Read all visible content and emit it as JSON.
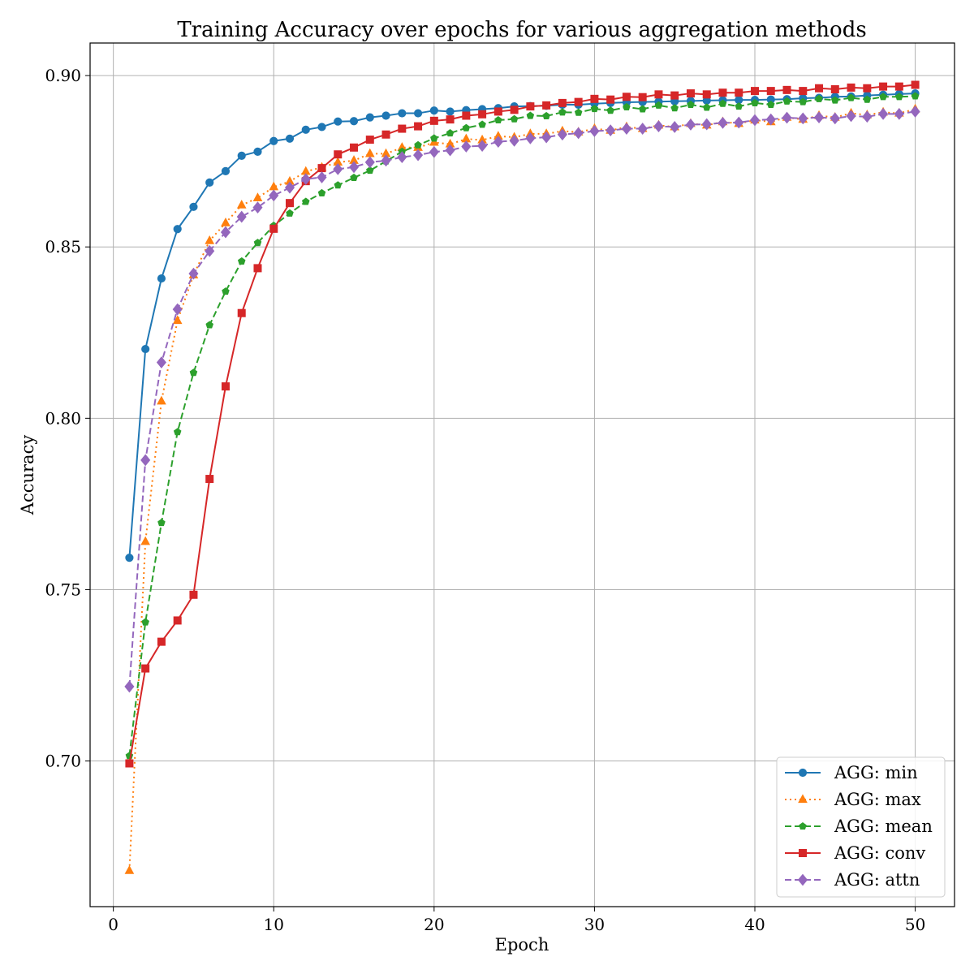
{
  "chart_data": {
    "type": "line",
    "title": "Training Accuracy over epochs for various aggregation methods",
    "xlabel": "Epoch",
    "ylabel": "Accuracy",
    "xlim": [
      -1.45,
      52.45
    ],
    "ylim": [
      0.6575,
      0.9095
    ],
    "xticks": [
      0,
      10,
      20,
      30,
      40,
      50
    ],
    "yticks": [
      0.7,
      0.75,
      0.8,
      0.85,
      0.9
    ],
    "ytick_labels": [
      "0.70",
      "0.75",
      "0.80",
      "0.85",
      "0.90"
    ],
    "grid": true,
    "legend_position": "lower-right",
    "x": [
      1,
      2,
      3,
      4,
      5,
      6,
      7,
      8,
      9,
      10,
      11,
      12,
      13,
      14,
      15,
      16,
      17,
      18,
      19,
      20,
      21,
      22,
      23,
      24,
      25,
      26,
      27,
      28,
      29,
      30,
      31,
      32,
      33,
      34,
      35,
      36,
      37,
      38,
      39,
      40,
      41,
      42,
      43,
      44,
      45,
      46,
      47,
      48,
      49,
      50
    ],
    "series": [
      {
        "name": "AGG: min",
        "color": "#1f77b4",
        "linestyle": "solid",
        "marker": "circle",
        "values": [
          0.7593,
          0.8202,
          0.8408,
          0.8552,
          0.8617,
          0.8688,
          0.8721,
          0.8766,
          0.8778,
          0.8809,
          0.8816,
          0.8842,
          0.885,
          0.8866,
          0.8867,
          0.8878,
          0.8883,
          0.889,
          0.889,
          0.8898,
          0.8895,
          0.8899,
          0.8902,
          0.8905,
          0.891,
          0.8911,
          0.8912,
          0.8915,
          0.8915,
          0.8918,
          0.892,
          0.8922,
          0.8923,
          0.8924,
          0.8925,
          0.8926,
          0.8927,
          0.8928,
          0.8929,
          0.8929,
          0.893,
          0.8931,
          0.8934,
          0.8935,
          0.8938,
          0.8939,
          0.8942,
          0.8944,
          0.8946,
          0.8948
        ]
      },
      {
        "name": "AGG: max",
        "color": "#ff7f0e",
        "linestyle": "dotted",
        "marker": "triangle",
        "values": [
          0.668,
          0.764,
          0.805,
          0.8285,
          0.8418,
          0.8518,
          0.857,
          0.8622,
          0.8643,
          0.8675,
          0.8691,
          0.872,
          0.8732,
          0.8747,
          0.8752,
          0.8772,
          0.8772,
          0.879,
          0.879,
          0.8805,
          0.88,
          0.8815,
          0.8812,
          0.8823,
          0.882,
          0.883,
          0.883,
          0.8838,
          0.8835,
          0.8845,
          0.884,
          0.885,
          0.8845,
          0.8855,
          0.885,
          0.886,
          0.8855,
          0.8865,
          0.886,
          0.887,
          0.8865,
          0.8878,
          0.8872,
          0.8883,
          0.8878,
          0.889,
          0.8885,
          0.8893,
          0.889,
          0.8902
        ]
      },
      {
        "name": "AGG: mean",
        "color": "#2ca02c",
        "linestyle": "dashed",
        "marker": "pentagon",
        "values": [
          0.7015,
          0.7405,
          0.7695,
          0.796,
          0.8133,
          0.8272,
          0.837,
          0.8458,
          0.8512,
          0.8562,
          0.8598,
          0.8632,
          0.8657,
          0.868,
          0.8702,
          0.8723,
          0.875,
          0.8778,
          0.8797,
          0.8817,
          0.8832,
          0.8847,
          0.8857,
          0.887,
          0.8873,
          0.8883,
          0.8882,
          0.8893,
          0.8892,
          0.8903,
          0.8898,
          0.8908,
          0.8902,
          0.8913,
          0.8905,
          0.8915,
          0.8907,
          0.8918,
          0.891,
          0.892,
          0.8915,
          0.8925,
          0.8923,
          0.8932,
          0.8928,
          0.8935,
          0.893,
          0.8938,
          0.8938,
          0.894
        ]
      },
      {
        "name": "AGG: conv",
        "color": "#d62728",
        "linestyle": "solid",
        "marker": "square",
        "values": [
          0.6993,
          0.727,
          0.7348,
          0.741,
          0.7485,
          0.7823,
          0.8093,
          0.8307,
          0.8438,
          0.8553,
          0.8628,
          0.8692,
          0.873,
          0.877,
          0.879,
          0.8813,
          0.8828,
          0.8845,
          0.8852,
          0.8868,
          0.8872,
          0.8883,
          0.8887,
          0.8895,
          0.89,
          0.891,
          0.8913,
          0.892,
          0.8923,
          0.8932,
          0.893,
          0.8938,
          0.8937,
          0.8945,
          0.8942,
          0.8948,
          0.8945,
          0.895,
          0.895,
          0.8955,
          0.8955,
          0.8958,
          0.8955,
          0.8963,
          0.896,
          0.8965,
          0.8963,
          0.8968,
          0.8968,
          0.8973
        ]
      },
      {
        "name": "AGG: attn",
        "color": "#9467bd",
        "linestyle": "dashed",
        "marker": "diamond",
        "values": [
          0.7217,
          0.7878,
          0.8163,
          0.8318,
          0.8422,
          0.8488,
          0.8543,
          0.8588,
          0.8615,
          0.865,
          0.8673,
          0.8698,
          0.8703,
          0.8727,
          0.8733,
          0.8747,
          0.8752,
          0.8762,
          0.8768,
          0.8777,
          0.8782,
          0.8793,
          0.8795,
          0.8807,
          0.881,
          0.8817,
          0.882,
          0.8828,
          0.8832,
          0.8838,
          0.884,
          0.8845,
          0.8845,
          0.8852,
          0.885,
          0.8857,
          0.8858,
          0.8862,
          0.8863,
          0.887,
          0.8872,
          0.8877,
          0.8875,
          0.8878,
          0.8875,
          0.8882,
          0.888,
          0.8888,
          0.8888,
          0.8895
        ]
      }
    ]
  }
}
